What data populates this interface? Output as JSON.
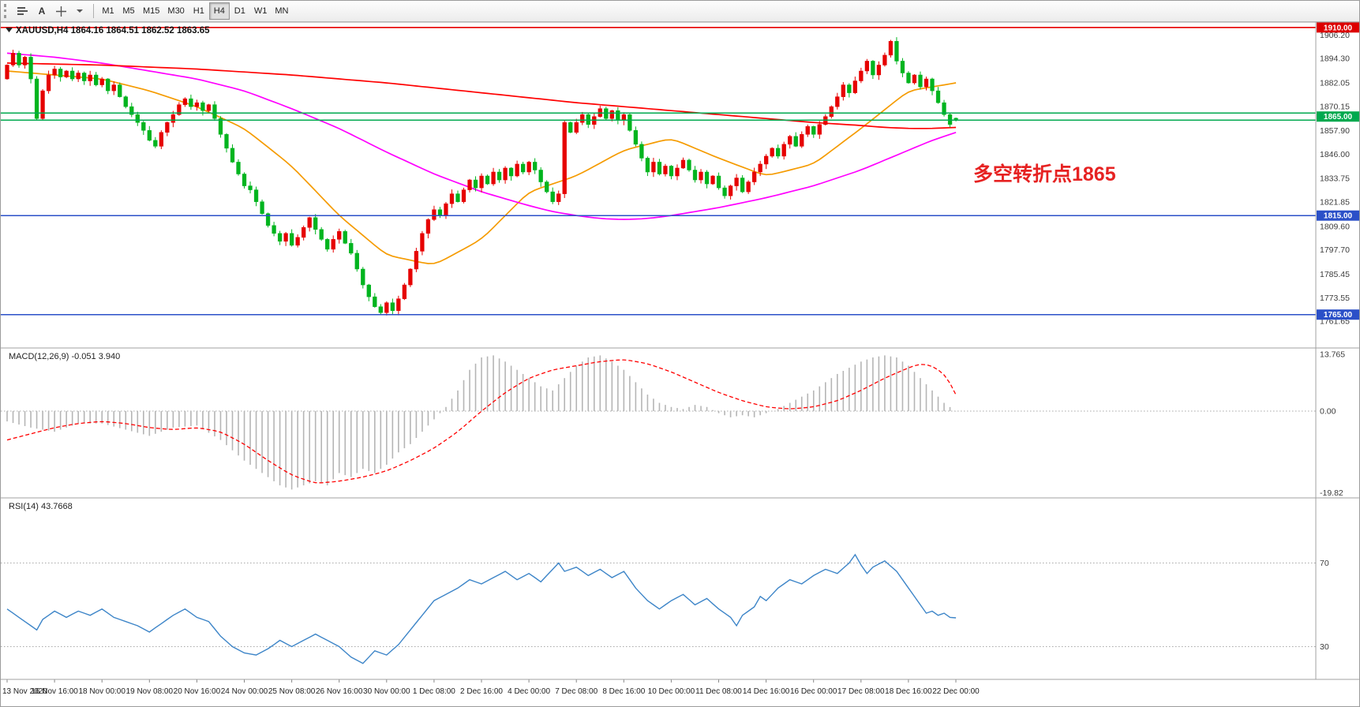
{
  "toolbar": {
    "letter_a": "A",
    "timeframes": [
      "M1",
      "M5",
      "M15",
      "M30",
      "H1",
      "H4",
      "D1",
      "W1",
      "MN"
    ],
    "active_timeframe": "H4"
  },
  "chart": {
    "annotation": "多空转折点1865",
    "annotation_color": "#e62222",
    "hlines": [
      {
        "name": "resistance-1910",
        "price": 1910.0,
        "color": "#e60000",
        "width": 1.6
      },
      {
        "name": "pivot-upper-1866",
        "price": 1866.8,
        "color": "#00a94f",
        "width": 1.5
      },
      {
        "name": "pivot-lower-1863",
        "price": 1863.2,
        "color": "#00a94f",
        "width": 1.5
      },
      {
        "name": "support-1815",
        "price": 1815.0,
        "color": "#2b50c8",
        "width": 1.5
      },
      {
        "name": "support-1765",
        "price": 1765.0,
        "color": "#2b50c8",
        "width": 1.5
      }
    ],
    "price_badges": [
      {
        "label": "1910.00",
        "price": 1910.0,
        "color": "#dd0000"
      },
      {
        "label": "1865.00",
        "price": 1865.0,
        "color": "#00a94f"
      },
      {
        "label": "1815.00",
        "price": 1815.0,
        "color": "#2b50c8"
      },
      {
        "label": "1765.00",
        "price": 1765.0,
        "color": "#2b50c8"
      }
    ],
    "price_labels": [
      "1906.20",
      "1894.30",
      "1882.05",
      "1870.15",
      "1857.90",
      "1846.00",
      "1833.75",
      "1821.85",
      "1809.60",
      "1797.70",
      "1785.45",
      "1773.55",
      "1761.65"
    ],
    "colors": {
      "candle_up": "#e60000",
      "candle_down": "#00b41e",
      "ma_fast": "#f59b00",
      "ma_medium": "#ff00ff",
      "ma_slow": "#ff0000",
      "macd_hist": "#b5b5b5",
      "macd_signal": "#ff0000",
      "rsi_line": "#3d85c8"
    }
  },
  "chart_data": {
    "type": "candlestick",
    "symbol": "XAUUSD",
    "timeframe": "H4",
    "title": "XAUUSD,H4 1864.16 1864.51 1862.52 1863.65",
    "current_ohlc": {
      "open": 1864.16,
      "high": 1864.51,
      "low": 1862.52,
      "close": 1863.65
    },
    "ylim": [
      1748.0,
      1911.5
    ],
    "levels": [
      1910.0,
      1865.0,
      1815.0,
      1765.0
    ],
    "x_labels": [
      "13 Nov 2020",
      "16 Nov 16:00",
      "18 Nov 00:00",
      "19 Nov 08:00",
      "20 Nov 16:00",
      "24 Nov 00:00",
      "25 Nov 08:00",
      "26 Nov 16:00",
      "30 Nov 00:00",
      "1 Dec 08:00",
      "2 Dec 16:00",
      "4 Dec 00:00",
      "7 Dec 08:00",
      "8 Dec 16:00",
      "10 Dec 00:00",
      "11 Dec 08:00",
      "14 Dec 16:00",
      "16 Dec 00:00",
      "17 Dec 08:00",
      "18 Dec 16:00",
      "22 Dec 00:00"
    ],
    "closes": [
      1891,
      1897,
      1891,
      1895,
      1884,
      1864,
      1878,
      1886,
      1889,
      1885,
      1888,
      1884,
      1887,
      1883,
      1886,
      1881,
      1884,
      1878,
      1881,
      1875,
      1870,
      1866,
      1862,
      1858,
      1853,
      1850,
      1857,
      1862,
      1866,
      1871,
      1874,
      1870,
      1872,
      1868,
      1871,
      1864,
      1856,
      1849,
      1842,
      1836,
      1830,
      1828,
      1822,
      1816,
      1810,
      1806,
      1802,
      1806,
      1800,
      1804,
      1809,
      1814,
      1808,
      1803,
      1798,
      1803,
      1807,
      1801,
      1796,
      1788,
      1780,
      1774,
      1769,
      1766,
      1771,
      1767,
      1773,
      1780,
      1788,
      1797,
      1806,
      1813,
      1818,
      1815,
      1821,
      1826,
      1822,
      1828,
      1833,
      1829,
      1835,
      1831,
      1837,
      1833,
      1839,
      1835,
      1841,
      1837,
      1842,
      1838,
      1832,
      1827,
      1822,
      1826,
      1862,
      1857,
      1862,
      1866,
      1861,
      1865,
      1869,
      1864,
      1868,
      1863,
      1866,
      1858,
      1851,
      1844,
      1837,
      1842,
      1836,
      1840,
      1835,
      1839,
      1843,
      1838,
      1833,
      1837,
      1831,
      1835,
      1829,
      1825,
      1830,
      1834,
      1827,
      1832,
      1837,
      1841,
      1845,
      1849,
      1845,
      1851,
      1855,
      1850,
      1856,
      1860,
      1856,
      1861,
      1865,
      1870,
      1875,
      1881,
      1877,
      1883,
      1888,
      1893,
      1886,
      1891,
      1896,
      1903,
      1893,
      1887,
      1882,
      1886,
      1880,
      1884,
      1878,
      1872,
      1866,
      1861,
      1863.65
    ],
    "moving_averages": [
      {
        "name": "ma-fast-orange",
        "color": "#f59b00",
        "points": [
          [
            0,
            1888
          ],
          [
            8,
            1886
          ],
          [
            16,
            1884
          ],
          [
            24,
            1878
          ],
          [
            32,
            1870
          ],
          [
            40,
            1859
          ],
          [
            48,
            1840
          ],
          [
            56,
            1815
          ],
          [
            64,
            1795
          ],
          [
            72,
            1790
          ],
          [
            80,
            1803
          ],
          [
            88,
            1827
          ],
          [
            96,
            1835
          ],
          [
            104,
            1848
          ],
          [
            112,
            1854
          ],
          [
            120,
            1844
          ],
          [
            128,
            1835
          ],
          [
            136,
            1841
          ],
          [
            144,
            1859
          ],
          [
            152,
            1878
          ],
          [
            160,
            1882
          ]
        ]
      },
      {
        "name": "ma-medium-magenta",
        "color": "#ff00ff",
        "points": [
          [
            0,
            1897
          ],
          [
            8,
            1895
          ],
          [
            16,
            1892
          ],
          [
            24,
            1888
          ],
          [
            32,
            1884
          ],
          [
            40,
            1878
          ],
          [
            48,
            1869
          ],
          [
            56,
            1859
          ],
          [
            64,
            1847
          ],
          [
            72,
            1836
          ],
          [
            80,
            1827
          ],
          [
            88,
            1820
          ],
          [
            92,
            1817
          ],
          [
            96,
            1815
          ],
          [
            100,
            1813.5
          ],
          [
            104,
            1813
          ],
          [
            108,
            1813.5
          ],
          [
            112,
            1815
          ],
          [
            116,
            1817
          ],
          [
            120,
            1819
          ],
          [
            128,
            1824
          ],
          [
            136,
            1830
          ],
          [
            144,
            1838
          ],
          [
            148,
            1843
          ],
          [
            152,
            1848
          ],
          [
            156,
            1853
          ],
          [
            160,
            1857
          ]
        ]
      },
      {
        "name": "ma-slow-red",
        "color": "#ff0000",
        "points": [
          [
            0,
            1892
          ],
          [
            16,
            1891
          ],
          [
            32,
            1889
          ],
          [
            48,
            1886
          ],
          [
            64,
            1882
          ],
          [
            80,
            1877
          ],
          [
            96,
            1872
          ],
          [
            104,
            1870
          ],
          [
            112,
            1868
          ],
          [
            120,
            1866
          ],
          [
            128,
            1864
          ],
          [
            136,
            1862
          ],
          [
            144,
            1860.5
          ],
          [
            148,
            1859.5
          ],
          [
            152,
            1859
          ],
          [
            156,
            1859
          ],
          [
            160,
            1859.5
          ]
        ]
      }
    ],
    "macd": {
      "label": "MACD(12,26,9) -0.051 3.940",
      "axis_labels": [
        "13.765",
        "0.00",
        "-19.82"
      ],
      "ylim": [
        -19.82,
        13.765
      ],
      "histogram": [
        [
          0,
          -2.5
        ],
        [
          4,
          -4
        ],
        [
          8,
          -5
        ],
        [
          12,
          -3
        ],
        [
          16,
          -3
        ],
        [
          20,
          -4.5
        ],
        [
          24,
          -6
        ],
        [
          28,
          -4
        ],
        [
          32,
          -3.5
        ],
        [
          36,
          -7
        ],
        [
          40,
          -12
        ],
        [
          44,
          -16
        ],
        [
          46,
          -18
        ],
        [
          48,
          -19
        ],
        [
          52,
          -17
        ],
        [
          54,
          -18
        ],
        [
          56,
          -15
        ],
        [
          58,
          -16
        ],
        [
          60,
          -14
        ],
        [
          62,
          -15
        ],
        [
          64,
          -13
        ],
        [
          66,
          -10
        ],
        [
          68,
          -8
        ],
        [
          70,
          -5
        ],
        [
          72,
          -2
        ],
        [
          74,
          1
        ],
        [
          76,
          5
        ],
        [
          78,
          10
        ],
        [
          80,
          13
        ],
        [
          82,
          13.5
        ],
        [
          84,
          12
        ],
        [
          86,
          10
        ],
        [
          88,
          8
        ],
        [
          90,
          6
        ],
        [
          92,
          5
        ],
        [
          94,
          8
        ],
        [
          96,
          11
        ],
        [
          98,
          13
        ],
        [
          100,
          13.5
        ],
        [
          102,
          12
        ],
        [
          104,
          10
        ],
        [
          106,
          7
        ],
        [
          108,
          4
        ],
        [
          110,
          2
        ],
        [
          112,
          1
        ],
        [
          114,
          0.5
        ],
        [
          116,
          1.5
        ],
        [
          118,
          1
        ],
        [
          120,
          -0.5
        ],
        [
          122,
          -1.5
        ],
        [
          124,
          -1
        ],
        [
          126,
          -1.5
        ],
        [
          128,
          -0.5
        ],
        [
          130,
          0.5
        ],
        [
          132,
          2
        ],
        [
          134,
          3.5
        ],
        [
          136,
          5
        ],
        [
          138,
          7
        ],
        [
          140,
          9
        ],
        [
          142,
          10.5
        ],
        [
          144,
          12
        ],
        [
          146,
          13
        ],
        [
          148,
          13.5
        ],
        [
          150,
          13
        ],
        [
          152,
          11
        ],
        [
          154,
          8
        ],
        [
          156,
          5
        ],
        [
          158,
          2
        ],
        [
          160,
          -0.05
        ]
      ],
      "signal": [
        [
          0,
          -7
        ],
        [
          4,
          -5.5
        ],
        [
          8,
          -4
        ],
        [
          12,
          -3
        ],
        [
          16,
          -2.5
        ],
        [
          20,
          -3
        ],
        [
          24,
          -4
        ],
        [
          28,
          -4.5
        ],
        [
          32,
          -4
        ],
        [
          36,
          -5
        ],
        [
          40,
          -8
        ],
        [
          44,
          -12
        ],
        [
          48,
          -15.5
        ],
        [
          52,
          -17.5
        ],
        [
          56,
          -17
        ],
        [
          60,
          -16
        ],
        [
          64,
          -14.5
        ],
        [
          68,
          -12
        ],
        [
          72,
          -9
        ],
        [
          76,
          -5
        ],
        [
          80,
          0
        ],
        [
          84,
          4.5
        ],
        [
          88,
          8
        ],
        [
          92,
          10
        ],
        [
          96,
          11
        ],
        [
          100,
          12
        ],
        [
          104,
          12.5
        ],
        [
          108,
          11.5
        ],
        [
          112,
          9.5
        ],
        [
          116,
          7
        ],
        [
          120,
          4.5
        ],
        [
          124,
          2.5
        ],
        [
          128,
          1
        ],
        [
          132,
          0.5
        ],
        [
          136,
          1
        ],
        [
          140,
          2.5
        ],
        [
          144,
          5
        ],
        [
          148,
          8
        ],
        [
          152,
          10.5
        ],
        [
          154,
          11.5
        ],
        [
          156,
          11
        ],
        [
          158,
          9
        ],
        [
          159,
          7
        ],
        [
          160,
          3.94
        ]
      ]
    },
    "rsi": {
      "label": "RSI(14) 43.7668",
      "levels": [
        70,
        30
      ],
      "points": [
        [
          0,
          48
        ],
        [
          2,
          44
        ],
        [
          4,
          40
        ],
        [
          5,
          38
        ],
        [
          6,
          43
        ],
        [
          8,
          47
        ],
        [
          10,
          44
        ],
        [
          12,
          47
        ],
        [
          14,
          45
        ],
        [
          16,
          48
        ],
        [
          18,
          44
        ],
        [
          20,
          42
        ],
        [
          22,
          40
        ],
        [
          24,
          37
        ],
        [
          26,
          41
        ],
        [
          28,
          45
        ],
        [
          30,
          48
        ],
        [
          32,
          44
        ],
        [
          34,
          42
        ],
        [
          36,
          35
        ],
        [
          38,
          30
        ],
        [
          40,
          27
        ],
        [
          42,
          26
        ],
        [
          44,
          29
        ],
        [
          46,
          33
        ],
        [
          48,
          30
        ],
        [
          50,
          33
        ],
        [
          52,
          36
        ],
        [
          54,
          33
        ],
        [
          56,
          30
        ],
        [
          58,
          25
        ],
        [
          60,
          22
        ],
        [
          62,
          28
        ],
        [
          64,
          26
        ],
        [
          66,
          31
        ],
        [
          68,
          38
        ],
        [
          70,
          45
        ],
        [
          72,
          52
        ],
        [
          74,
          55
        ],
        [
          76,
          58
        ],
        [
          78,
          62
        ],
        [
          80,
          60
        ],
        [
          82,
          63
        ],
        [
          84,
          66
        ],
        [
          86,
          62
        ],
        [
          88,
          65
        ],
        [
          90,
          61
        ],
        [
          92,
          67
        ],
        [
          93,
          70
        ],
        [
          94,
          66
        ],
        [
          96,
          68
        ],
        [
          98,
          64
        ],
        [
          100,
          67
        ],
        [
          102,
          63
        ],
        [
          104,
          66
        ],
        [
          106,
          58
        ],
        [
          108,
          52
        ],
        [
          110,
          48
        ],
        [
          112,
          52
        ],
        [
          114,
          55
        ],
        [
          116,
          50
        ],
        [
          118,
          53
        ],
        [
          120,
          48
        ],
        [
          122,
          44
        ],
        [
          123,
          40
        ],
        [
          124,
          45
        ],
        [
          126,
          49
        ],
        [
          127,
          54
        ],
        [
          128,
          52
        ],
        [
          130,
          58
        ],
        [
          132,
          62
        ],
        [
          134,
          60
        ],
        [
          136,
          64
        ],
        [
          138,
          67
        ],
        [
          140,
          65
        ],
        [
          142,
          70
        ],
        [
          143,
          74
        ],
        [
          144,
          69
        ],
        [
          145,
          65
        ],
        [
          146,
          68
        ],
        [
          148,
          71
        ],
        [
          150,
          66
        ],
        [
          152,
          58
        ],
        [
          154,
          50
        ],
        [
          155,
          46
        ],
        [
          156,
          47
        ],
        [
          157,
          45
        ],
        [
          158,
          46
        ],
        [
          159,
          44
        ],
        [
          160,
          43.77
        ]
      ]
    }
  }
}
